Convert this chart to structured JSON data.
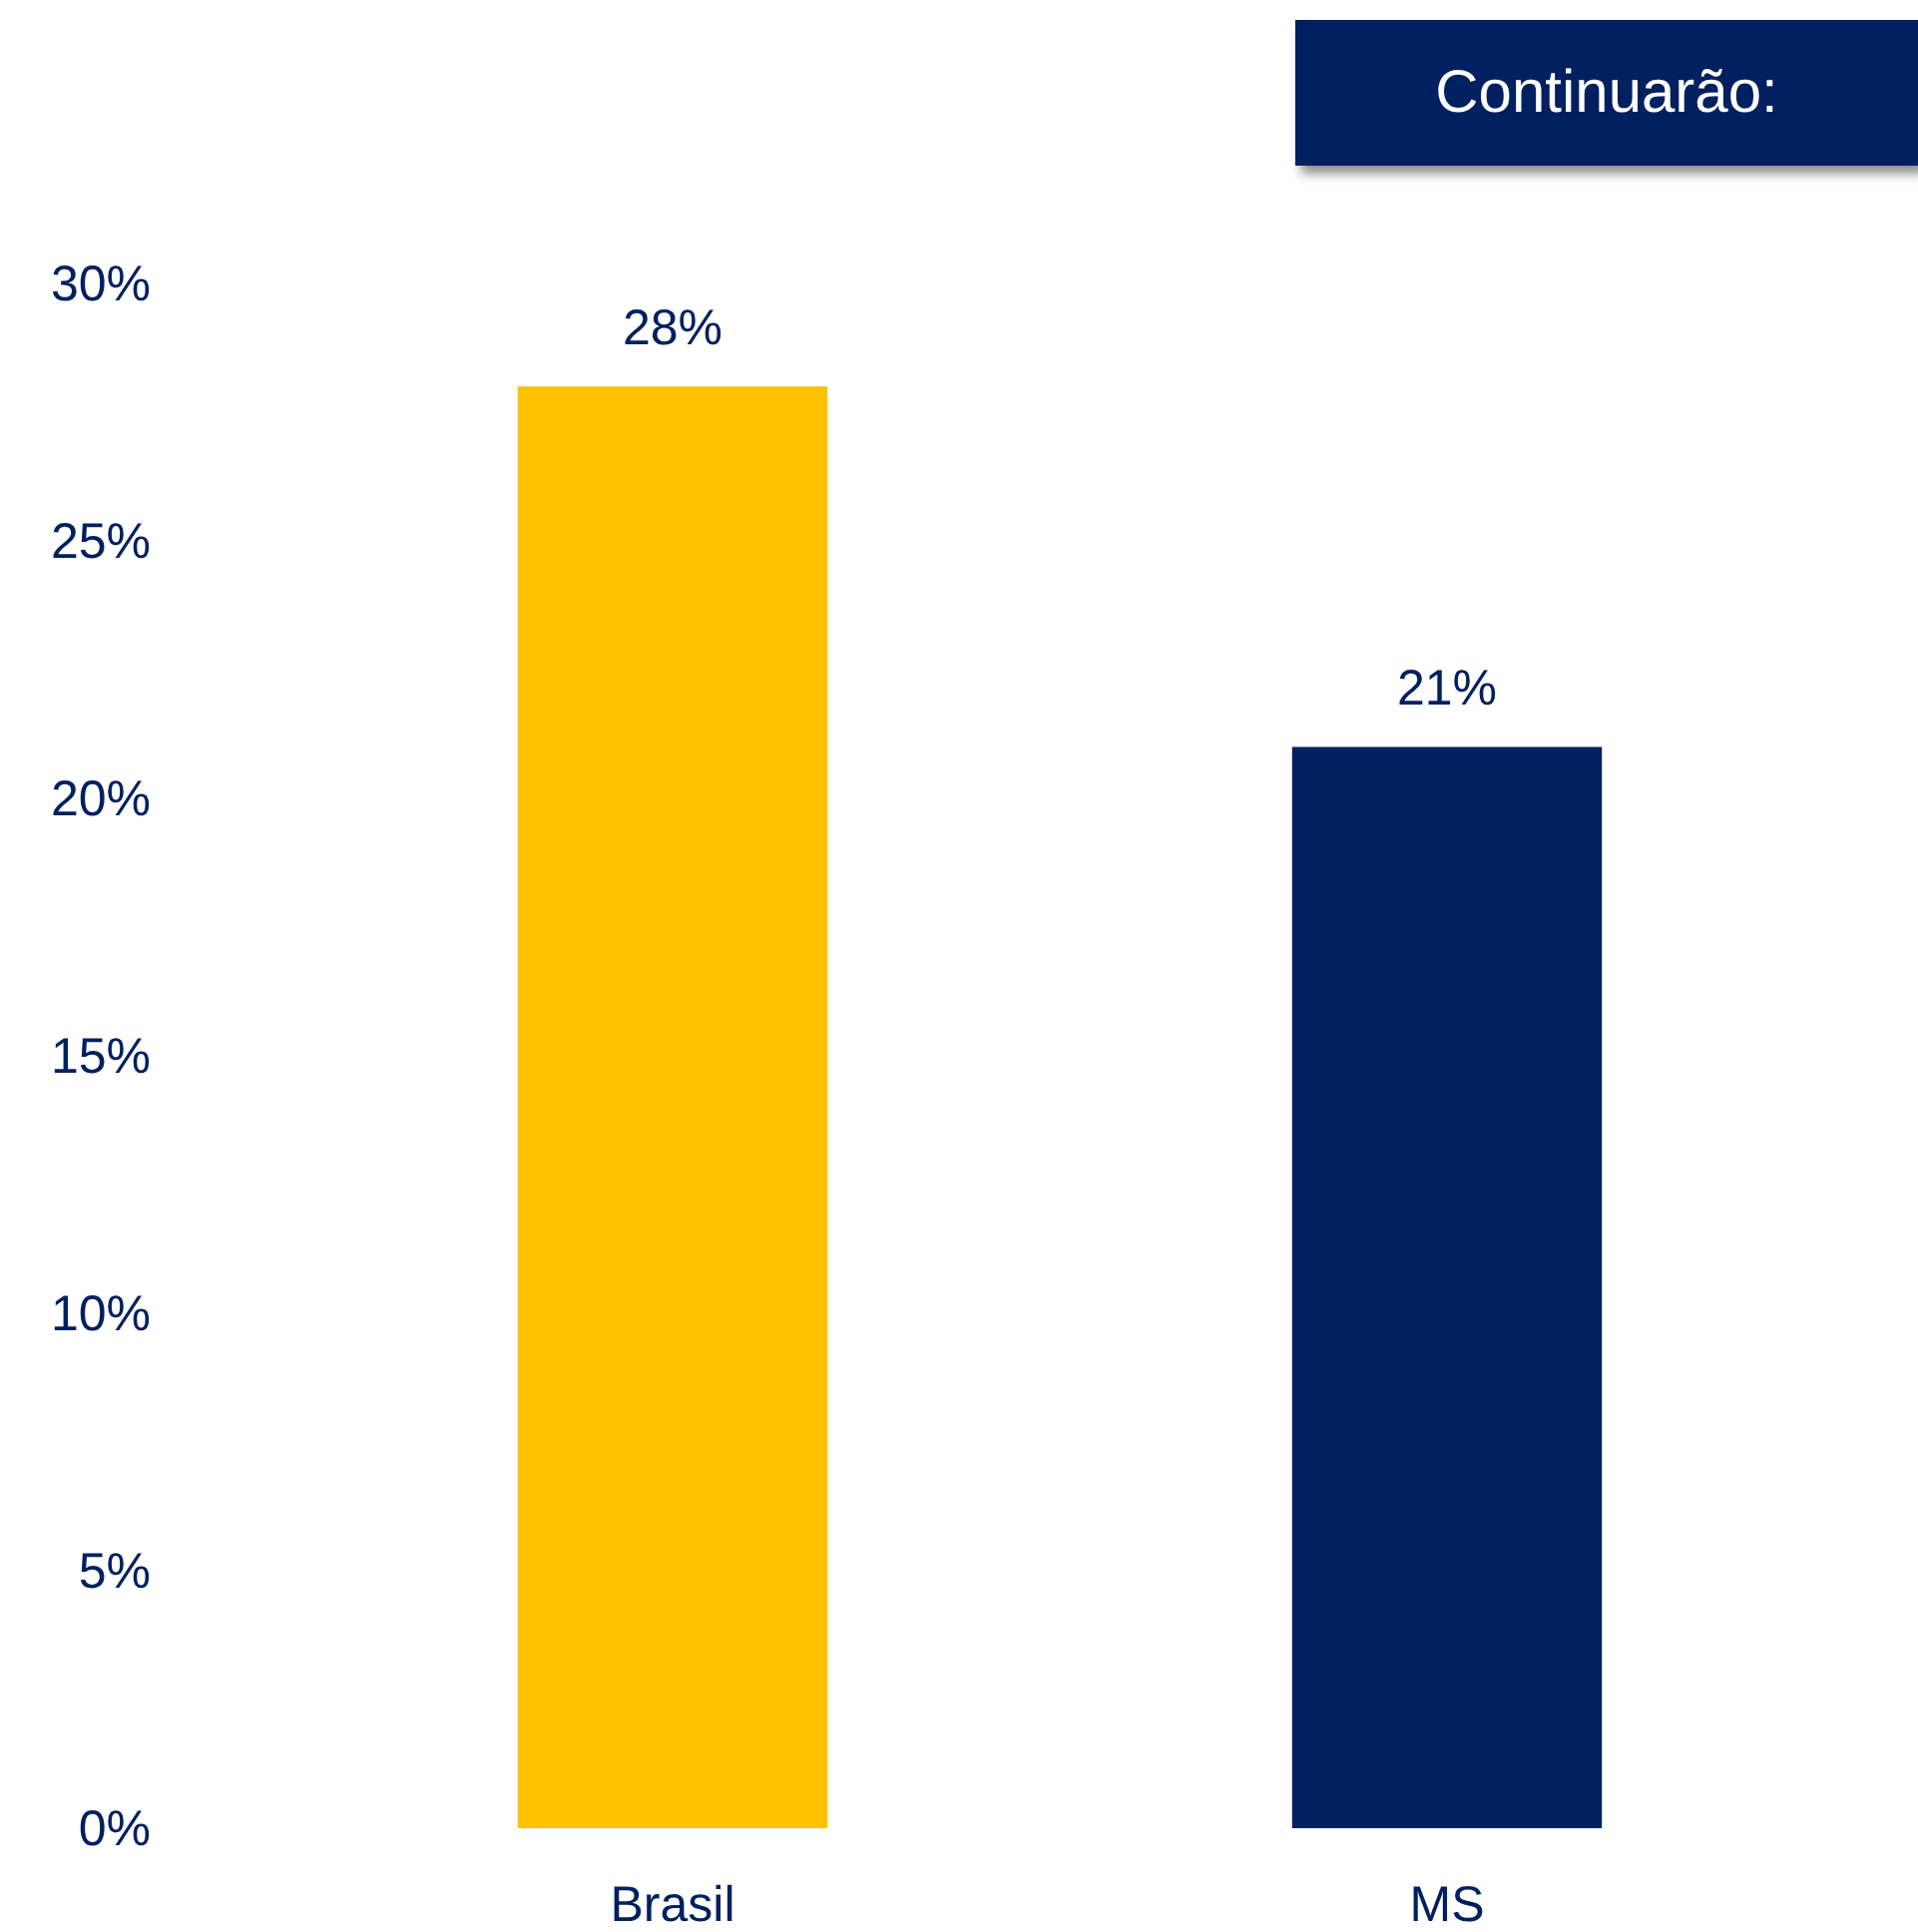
{
  "chart_data": {
    "type": "bar",
    "categories": [
      "Brasil",
      "MS"
    ],
    "values": [
      28,
      21
    ],
    "colors": [
      "#ffc000",
      "#002060"
    ],
    "value_labels": [
      "28%",
      "21%"
    ],
    "ylim": [
      0,
      30
    ],
    "yticks": [
      {
        "value": 0,
        "label": "0%"
      },
      {
        "value": 5,
        "label": "5%"
      },
      {
        "value": 10,
        "label": "10%"
      },
      {
        "value": 15,
        "label": "15%"
      },
      {
        "value": 20,
        "label": "20%"
      },
      {
        "value": 25,
        "label": "25%"
      },
      {
        "value": 30,
        "label": "30%"
      }
    ],
    "annotations": [
      "Continuarão:"
    ]
  }
}
